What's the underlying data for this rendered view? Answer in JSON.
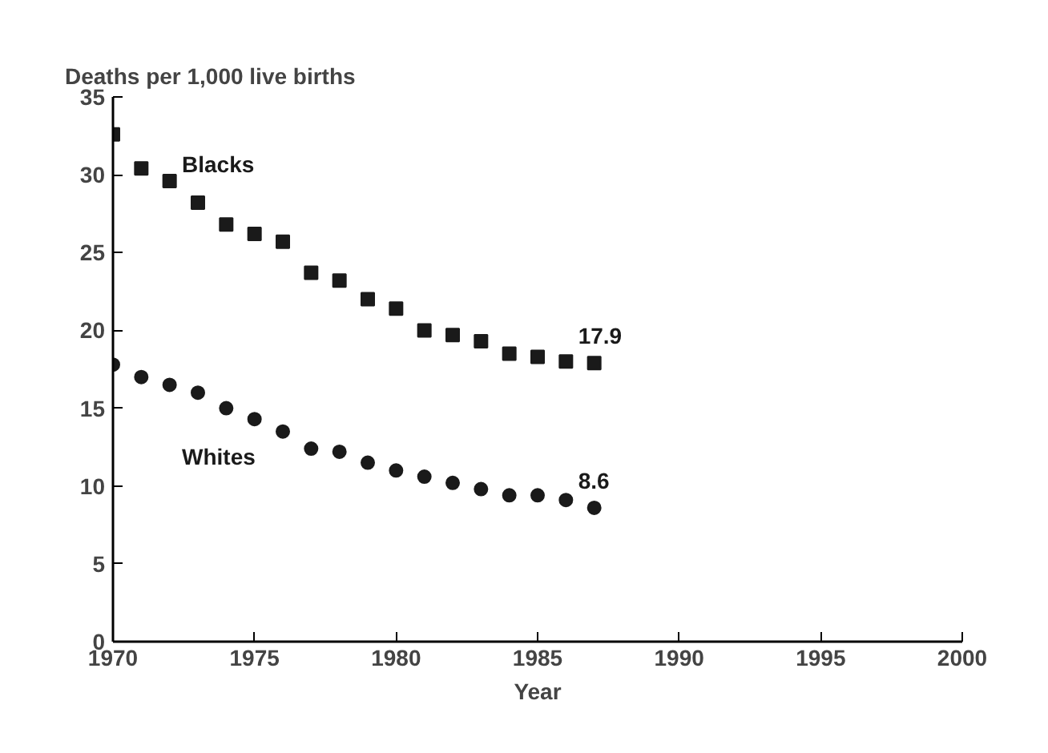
{
  "chart_data": {
    "type": "scatter",
    "ylabel": "Deaths per 1,000 live births",
    "xlabel": "Year",
    "x": [
      1970,
      1971,
      1972,
      1973,
      1974,
      1975,
      1976,
      1977,
      1978,
      1979,
      1980,
      1981,
      1982,
      1983,
      1984,
      1985,
      1986,
      1987
    ],
    "series": [
      {
        "name": "Blacks",
        "color": "#1a1a1a",
        "marker": "square",
        "values": [
          32.6,
          30.4,
          29.6,
          28.2,
          26.8,
          26.2,
          25.7,
          23.7,
          23.2,
          22.0,
          21.4,
          20.0,
          19.7,
          19.3,
          18.5,
          18.3,
          18.0,
          17.9
        ],
        "value_labels": [
          null,
          null,
          null,
          null,
          null,
          null,
          null,
          null,
          null,
          null,
          null,
          null,
          null,
          null,
          null,
          null,
          null,
          "17.9"
        ]
      },
      {
        "name": "Whites",
        "color": "#1a1a1a",
        "marker": "circle",
        "values": [
          17.8,
          17.0,
          16.5,
          16.0,
          15.0,
          14.3,
          13.5,
          12.4,
          12.2,
          11.5,
          11.0,
          10.6,
          10.2,
          9.8,
          9.4,
          9.4,
          9.1,
          8.6
        ],
        "value_labels": [
          null,
          null,
          null,
          null,
          null,
          null,
          null,
          null,
          null,
          null,
          null,
          null,
          null,
          null,
          null,
          null,
          null,
          "8.6"
        ]
      }
    ],
    "xlim": [
      1970,
      2000
    ],
    "xticks": [
      1970,
      1975,
      1980,
      1985,
      1990,
      1995,
      2000
    ],
    "ylim": [
      0,
      35
    ],
    "yticks": [
      0,
      5,
      10,
      15,
      20,
      25,
      30,
      35
    ],
    "grid": false
  }
}
